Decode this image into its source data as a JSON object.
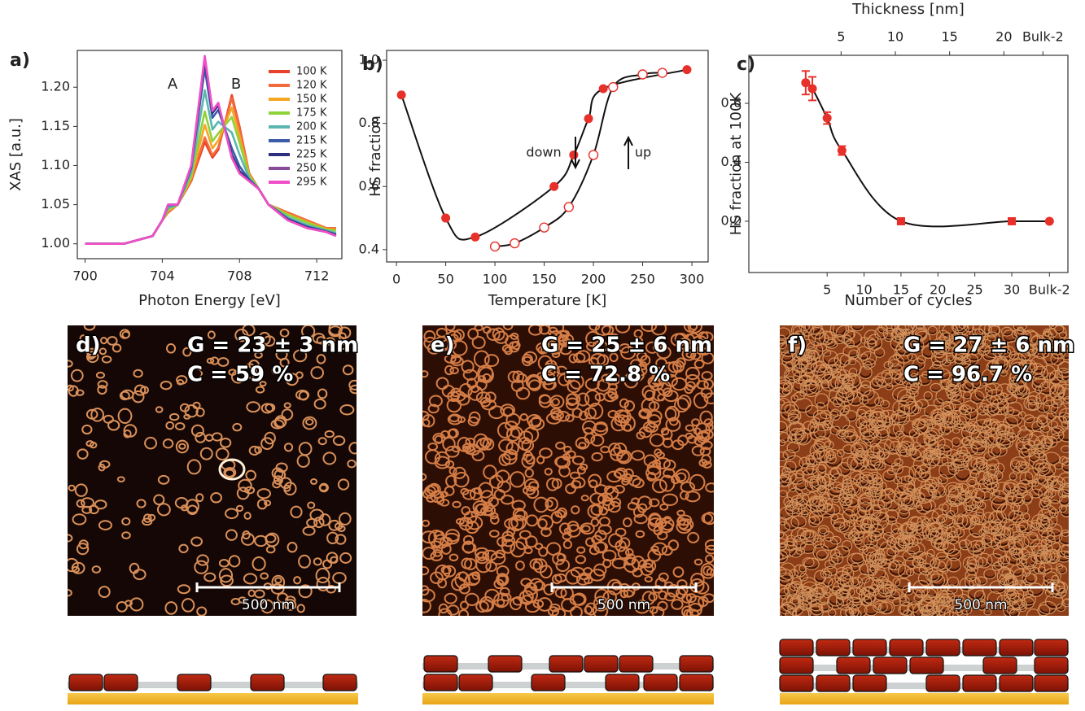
{
  "chart_data": [
    {
      "type": "line",
      "panel_label": "a)",
      "x_label": "Photon Energy [eV]",
      "y_label": "XAS [a.u.]",
      "annotations": [
        "A",
        "B"
      ],
      "legend": "upper right",
      "x": [
        700,
        702,
        703.5,
        704,
        704.3,
        704.8,
        705.5,
        706.2,
        706.6,
        706.9,
        707.3,
        707.6,
        708,
        708.5,
        709,
        709.5,
        710.5,
        711.5,
        712.5,
        713
      ],
      "xlim": [
        699.6,
        713.3
      ],
      "xticks": [
        700,
        704,
        708,
        712
      ],
      "ylim": [
        0.981,
        1.247
      ],
      "yticks": [
        {
          "value": 1,
          "label": "1.00"
        },
        1.05,
        {
          "value": 1.1,
          "label": "1.10"
        },
        1.15,
        {
          "value": 1.2,
          "label": "1.20"
        }
      ],
      "series": [
        {
          "name": "100 K",
          "color": "#e8412b",
          "values": [
            1.0,
            1.0,
            1.01,
            1.03,
            1.04,
            1.05,
            1.08,
            1.13,
            1.11,
            1.12,
            1.16,
            1.19,
            1.15,
            1.09,
            1.07,
            1.05,
            1.04,
            1.03,
            1.02,
            1.02
          ]
        },
        {
          "name": "120 K",
          "color": "#f26b3a",
          "values": [
            1.0,
            1.0,
            1.01,
            1.03,
            1.041,
            1.05,
            1.081,
            1.136,
            1.113,
            1.123,
            1.159,
            1.186,
            1.147,
            1.09,
            1.07,
            1.05,
            1.04,
            1.03,
            1.02,
            1.02
          ]
        },
        {
          "name": "150 K",
          "color": "#f5a623",
          "values": [
            1.0,
            1.0,
            1.01,
            1.03,
            1.042,
            1.05,
            1.084,
            1.152,
            1.122,
            1.132,
            1.156,
            1.174,
            1.138,
            1.088,
            1.07,
            1.05,
            1.038,
            1.028,
            1.019,
            1.018
          ]
        },
        {
          "name": "175 K",
          "color": "#8ed33a",
          "values": [
            1.0,
            1.0,
            1.01,
            1.03,
            1.044,
            1.05,
            1.087,
            1.169,
            1.131,
            1.141,
            1.153,
            1.162,
            1.129,
            1.087,
            1.07,
            1.05,
            1.037,
            1.027,
            1.018,
            1.017
          ]
        },
        {
          "name": "200 K",
          "color": "#5bb5b0",
          "values": [
            1.0,
            1.0,
            1.01,
            1.03,
            1.046,
            1.05,
            1.092,
            1.196,
            1.146,
            1.156,
            1.148,
            1.142,
            1.114,
            1.084,
            1.07,
            1.05,
            1.034,
            1.024,
            1.017,
            1.014
          ]
        },
        {
          "name": "215 K",
          "color": "#3a5aa8",
          "values": [
            1.0,
            1.0,
            1.01,
            1.03,
            1.049,
            1.05,
            1.097,
            1.224,
            1.161,
            1.171,
            1.143,
            1.122,
            1.099,
            1.082,
            1.07,
            1.05,
            1.032,
            1.022,
            1.016,
            1.012
          ]
        },
        {
          "name": "225 K",
          "color": "#2f2f7f",
          "values": [
            1.0,
            1.0,
            1.01,
            1.03,
            1.05,
            1.05,
            1.099,
            1.235,
            1.167,
            1.177,
            1.141,
            1.114,
            1.093,
            1.081,
            1.07,
            1.05,
            1.031,
            1.021,
            1.015,
            1.011
          ]
        },
        {
          "name": "250 K",
          "color": "#8a4a9a",
          "values": [
            1.0,
            1.0,
            1.01,
            1.03,
            1.05,
            1.05,
            1.1,
            1.238,
            1.17,
            1.18,
            1.14,
            1.11,
            1.09,
            1.08,
            1.07,
            1.05,
            1.03,
            1.02,
            1.015,
            1.01
          ]
        },
        {
          "name": "295 K",
          "color": "#f04fc8",
          "values": [
            1.0,
            1.0,
            1.01,
            1.03,
            1.05,
            1.05,
            1.1,
            1.24,
            1.17,
            1.18,
            1.14,
            1.11,
            1.09,
            1.08,
            1.07,
            1.05,
            1.03,
            1.02,
            1.015,
            1.01
          ]
        }
      ]
    },
    {
      "type": "scatter",
      "panel_label": "b)",
      "x_label": "Temperature [K]",
      "y_label": "HS fraction",
      "annotations": [
        "down",
        "up"
      ],
      "xlim": [
        -10,
        316.5
      ],
      "xticks": [
        0,
        50,
        100,
        150,
        200,
        250,
        300
      ],
      "ylim": [
        0.361,
        1.031
      ],
      "yticks": [
        0.4,
        0.6,
        0.8,
        {
          "value": 1,
          "label": "1.0"
        }
      ],
      "series": [
        {
          "marker": "filled",
          "color": "#e8302a",
          "x": [
            5,
            50,
            80,
            160,
            180,
            195,
            210,
            295
          ],
          "values": [
            0.89,
            0.5,
            0.44,
            0.6,
            0.7,
            0.815,
            0.91,
            0.97
          ]
        },
        {
          "marker": "open",
          "color": "#e8302a",
          "x": [
            100,
            120,
            150,
            175,
            200,
            220,
            250,
            270
          ],
          "values": [
            0.41,
            0.42,
            0.47,
            0.535,
            0.7,
            0.915,
            0.955,
            0.96
          ]
        }
      ]
    },
    {
      "type": "scatter",
      "panel_label": "c)",
      "x_label": "Number of cycles",
      "y_label": "HS fraction at 100K",
      "x2_label": "Thickness [nm]",
      "x": [
        2.1,
        3,
        5,
        7,
        15,
        30,
        35.1
      ],
      "xlim": [
        -5.6,
        37.6
      ],
      "xticks": [
        5,
        10,
        15,
        20,
        25,
        30,
        {
          "value": 35.1,
          "label": "Bulk-2"
        }
      ],
      "x2lim": [
        -3.5,
        25.9
      ],
      "x2ticks": [
        5,
        10,
        15,
        20,
        {
          "value": 23.6,
          "label": "Bulk-2"
        }
      ],
      "ylim": [
        0.026,
        0.763
      ],
      "yticks": [
        0.2,
        0.4,
        0.6
      ],
      "series": [
        {
          "marker": "filled",
          "color": "#e8302a",
          "values": [
            0.67,
            0.65,
            0.55,
            0.44,
            0.2,
            0.2,
            0.2
          ],
          "errors": [
            0.04,
            0.04,
            0.02,
            0.015,
            0.008,
            0.008,
            null
          ],
          "markers": [
            "circle",
            "circle",
            "circle",
            "circle",
            "square",
            "square",
            "circle"
          ]
        }
      ]
    }
  ],
  "images": [
    {
      "label": "d)",
      "lines": [
        "G = 23 ± 3 nm",
        "C = 59 %"
      ],
      "scale_bar": "500 nm"
    },
    {
      "label": "e)",
      "lines": [
        "G = 25 ± 6 nm",
        "C = 72.8 %"
      ],
      "scale_bar": "500 nm"
    },
    {
      "label": "f)",
      "lines": [
        "G = 27 ± 6 nm",
        "C = 96.7 %"
      ],
      "scale_bar": "500 nm"
    }
  ]
}
